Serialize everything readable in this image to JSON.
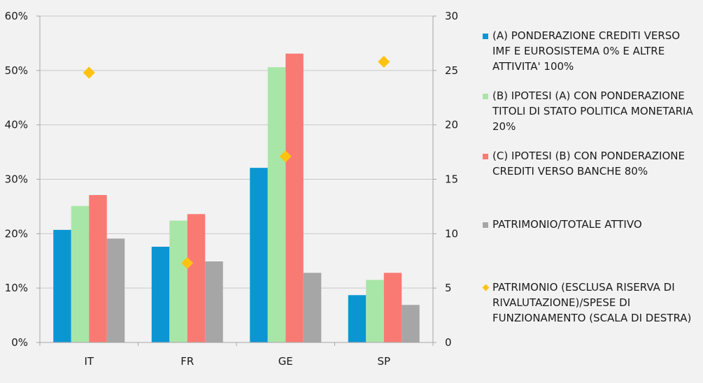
{
  "chart_data": {
    "type": "bar",
    "categories": [
      "IT",
      "FR",
      "GE",
      "SP"
    ],
    "series": [
      {
        "name": "(A) PONDERAZIONE CREDITI VERSO IMF E EUROSISTEMA 0% E ALTRE ATTIVITA' 100%",
        "axis": "left",
        "kind": "bar",
        "color": "#0b96d3",
        "values": [
          20.7,
          17.6,
          32.1,
          8.7
        ]
      },
      {
        "name": "(B) IPOTESI (A) CON PONDERAZIONE TITOLI DI STATO POLITICA MONETARIA 20%",
        "axis": "left",
        "kind": "bar",
        "color": "#a8e6a8",
        "values": [
          25.1,
          22.4,
          50.6,
          11.5
        ]
      },
      {
        "name": "(C) IPOTESI (B) CON PONDERAZIONE CREDITI VERSO BANCHE 80%",
        "axis": "left",
        "kind": "bar",
        "color": "#f97a73",
        "values": [
          27.1,
          23.6,
          53.1,
          12.8
        ]
      },
      {
        "name": "PATRIMONIO/TOTALE ATTIVO",
        "axis": "left",
        "kind": "bar",
        "color": "#a6a6a6",
        "values": [
          19.1,
          14.9,
          12.8,
          6.9
        ]
      },
      {
        "name": "PATRIMONIO (ESCLUSA RISERVA DI RIVALUTAZIONE)/SPESE DI FUNZIONAMENTO (SCALA DI DESTRA)",
        "axis": "right",
        "kind": "marker",
        "marker": "diamond",
        "color": "#ffc20e",
        "values": [
          24.8,
          7.3,
          17.1,
          25.8
        ]
      }
    ],
    "y_left": {
      "min": 0,
      "max": 60,
      "ticks": [
        0,
        10,
        20,
        30,
        40,
        50,
        60
      ],
      "tick_labels": [
        "0%",
        "10%",
        "20%",
        "30%",
        "40%",
        "50%",
        "60%"
      ]
    },
    "y_right": {
      "min": 0,
      "max": 30,
      "ticks": [
        0,
        5,
        10,
        15,
        20,
        25,
        30
      ],
      "tick_labels": [
        "0",
        "5",
        "10",
        "15",
        "20",
        "25",
        "30"
      ]
    },
    "grid": "horizontal",
    "legend_position": "right",
    "axis_color": "#a6a6a6",
    "grid_color": "#c8c8c8"
  }
}
